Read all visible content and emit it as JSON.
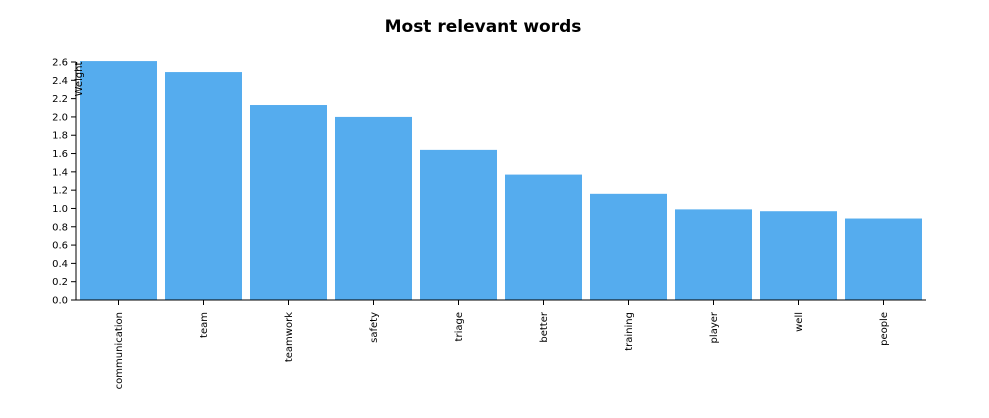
{
  "chart_data": {
    "type": "bar",
    "title": "Most relevant words",
    "xlabel": "",
    "ylabel": "Weight",
    "categories": [
      "communication",
      "team",
      "teamwork",
      "safety",
      "triage",
      "better",
      "training",
      "player",
      "well",
      "people"
    ],
    "values": [
      2.61,
      2.49,
      2.13,
      2.0,
      1.64,
      1.37,
      1.16,
      0.99,
      0.97,
      0.89
    ],
    "ylim": [
      0,
      2.6
    ],
    "yticks": [
      "0.0",
      "0.2",
      "0.4",
      "0.6",
      "0.8",
      "1.0",
      "1.2",
      "1.4",
      "1.6",
      "1.8",
      "2.0",
      "2.2",
      "2.4",
      "2.6"
    ],
    "grid": false,
    "bar_color": "#55acee"
  }
}
